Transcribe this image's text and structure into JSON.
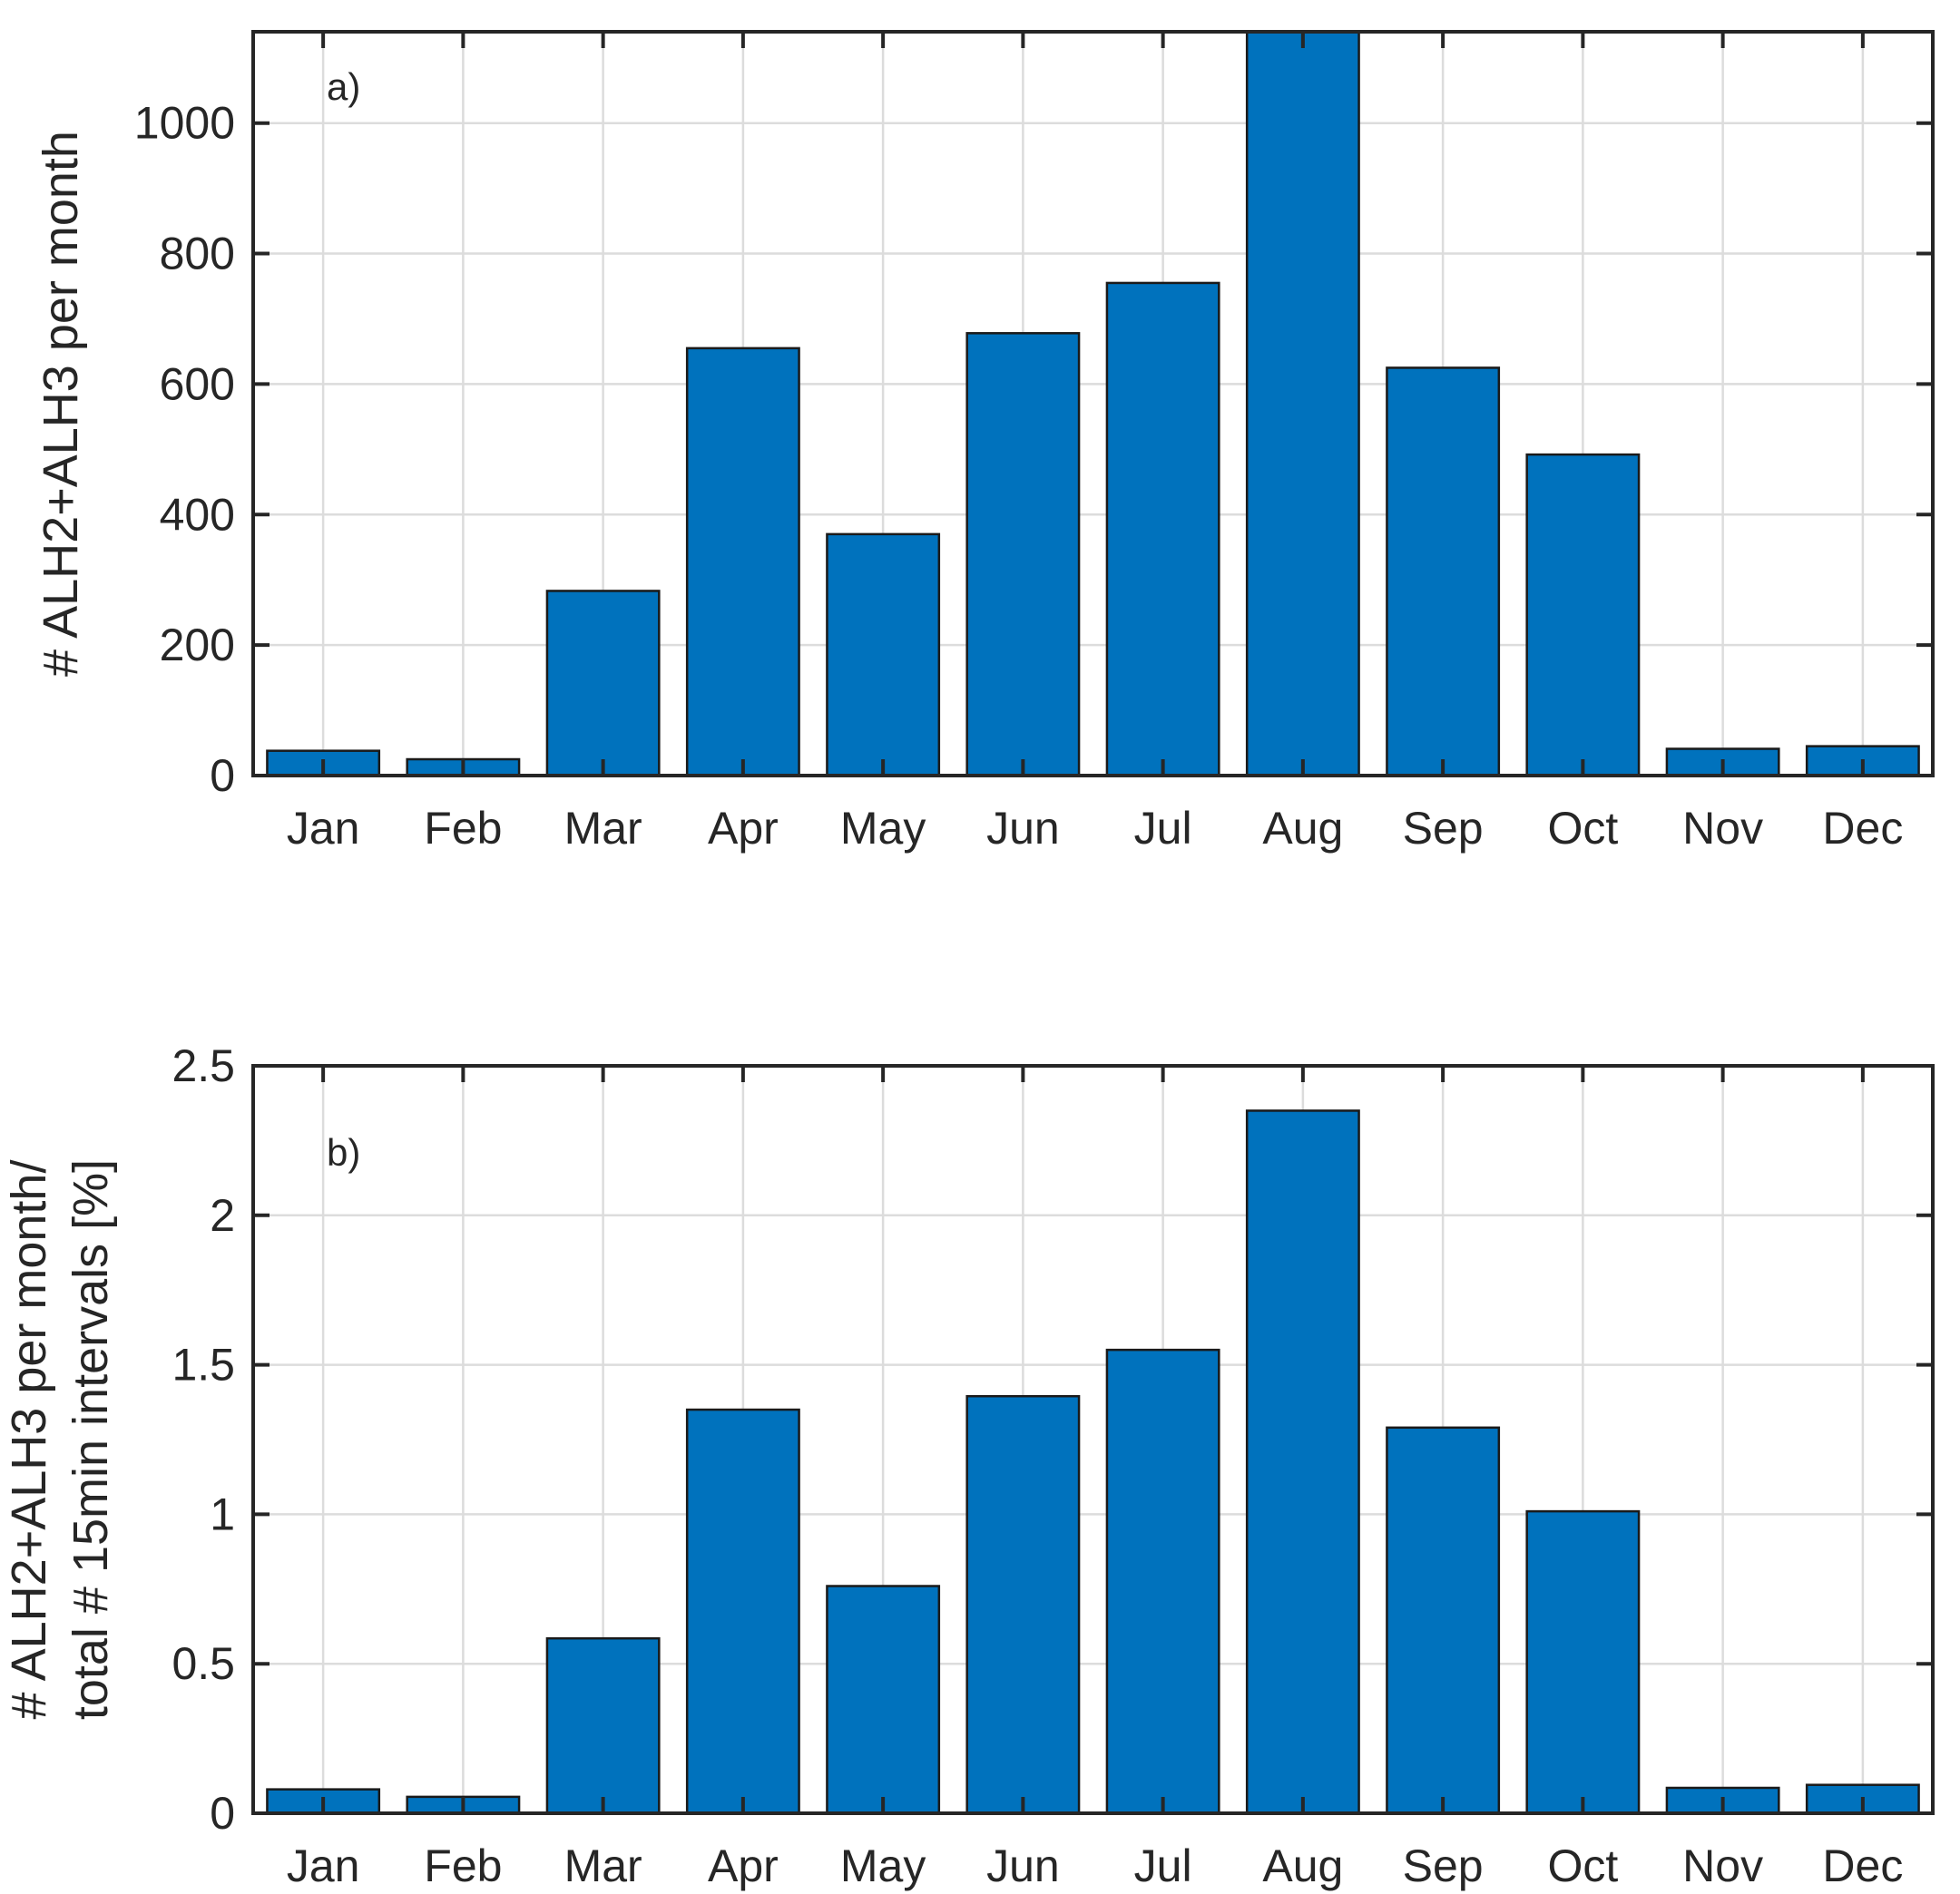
{
  "chart_data": [
    {
      "type": "bar",
      "panel_label": "a)",
      "title": "",
      "xlabel": "",
      "ylabel": "# ALH2+ALH3 per month",
      "categories": [
        "Jan",
        "Feb",
        "Mar",
        "Apr",
        "May",
        "Jun",
        "Jul",
        "Aug",
        "Sep",
        "Oct",
        "Nov",
        "Dec"
      ],
      "values": [
        38,
        25,
        283,
        655,
        370,
        678,
        755,
        1140,
        625,
        492,
        41,
        45
      ],
      "ylim": [
        0,
        1140
      ],
      "yticks": [
        0,
        200,
        400,
        600,
        800,
        1000
      ],
      "ytick_labels": [
        "0",
        "200",
        "400",
        "600",
        "800",
        "1000"
      ],
      "grid": true,
      "bar_color": "#0072BD"
    },
    {
      "type": "bar",
      "panel_label": "b)",
      "title": "",
      "xlabel": "",
      "ylabel": [
        "# ALH2+ALH3 per month/",
        "total # 15min intervals [%]"
      ],
      "categories": [
        "Jan",
        "Feb",
        "Mar",
        "Apr",
        "May",
        "Jun",
        "Jul",
        "Aug",
        "Sep",
        "Oct",
        "Nov",
        "Dec"
      ],
      "values": [
        0.08,
        0.055,
        0.585,
        1.35,
        0.76,
        1.395,
        1.55,
        2.35,
        1.29,
        1.01,
        0.085,
        0.095
      ],
      "ylim": [
        0,
        2.5
      ],
      "yticks": [
        0,
        0.5,
        1,
        1.5,
        2,
        2.5
      ],
      "ytick_labels": [
        "0",
        "0.5",
        "1",
        "1.5",
        "2",
        "2.5"
      ],
      "grid": true,
      "bar_color": "#0072BD"
    }
  ]
}
